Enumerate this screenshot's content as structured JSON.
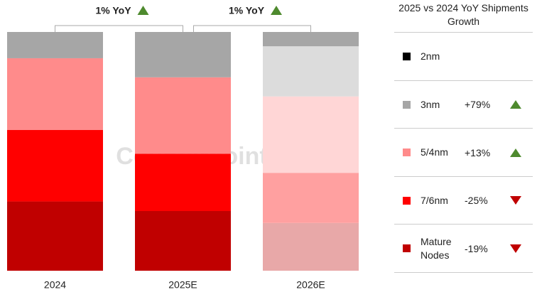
{
  "chart_data": {
    "type": "stacked-bar",
    "title": "2025 vs 2024 YoY Shipments Growth",
    "watermark": "Counterpoint",
    "annotations": [
      "1% YoY",
      "1% YoY"
    ],
    "categories": [
      "2024",
      "2025E",
      "2026E"
    ],
    "ylim": [
      0,
      100
    ],
    "series": [
      {
        "name": "Mature Nodes",
        "color": "#c00000",
        "colors": [
          "#c00000",
          "#c00000",
          "#e8a8a8"
        ],
        "values": [
          29,
          25,
          20
        ],
        "growth": "-19%",
        "trend": "down"
      },
      {
        "name": "7/6nm",
        "color": "#ff0000",
        "colors": [
          "#ff0000",
          "#ff0000",
          "#ffa0a0"
        ],
        "values": [
          30,
          24,
          21
        ],
        "growth": "-25%",
        "trend": "down"
      },
      {
        "name": "5/4nm",
        "color": "#ff8b8b",
        "colors": [
          "#ff8b8b",
          "#ff8b8b",
          "#ffd6d6"
        ],
        "values": [
          30,
          32,
          32
        ],
        "growth": "+13%",
        "trend": "up"
      },
      {
        "name": "3nm",
        "color": "#a6a6a6",
        "colors": [
          "#a6a6a6",
          "#a6a6a6",
          "#dcdcdc"
        ],
        "values": [
          11,
          19,
          21
        ],
        "growth": "+79%",
        "trend": "up"
      },
      {
        "name": "2nm",
        "color": "#000000",
        "colors": [
          "#000000",
          "#000000",
          "#a6a6a6"
        ],
        "values": [
          0,
          0,
          6
        ]
      }
    ]
  }
}
